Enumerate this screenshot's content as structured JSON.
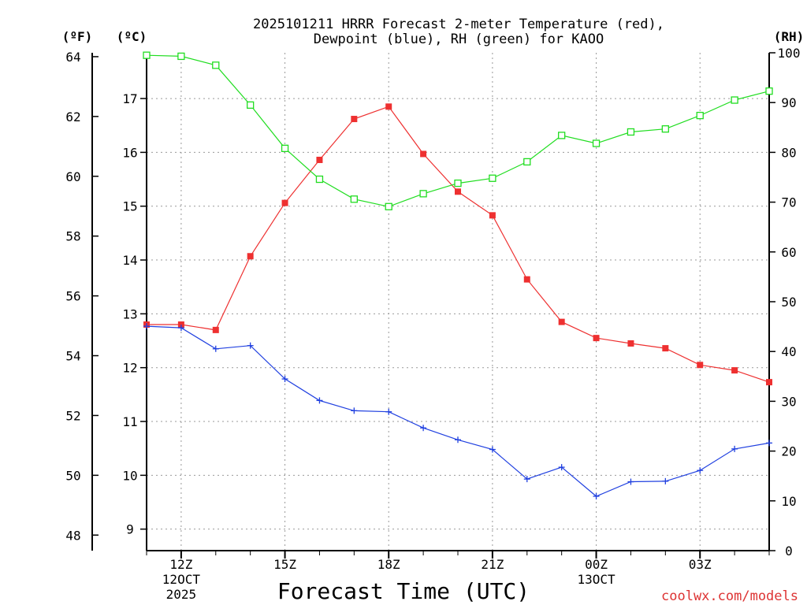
{
  "chart_data": {
    "type": "line",
    "title_line1": "2025101211 HRRR Forecast 2-meter Temperature (red),",
    "title_line2": "Dewpoint (blue), RH (green) for KAOO",
    "xlabel": "Forecast Time (UTC)",
    "watermark": "coolwx.com/models",
    "units": {
      "fahrenheit": "(ºF)",
      "celsius": "(ºC)",
      "rh": "(RH)"
    },
    "hours": [
      0,
      1,
      2,
      3,
      4,
      5,
      6,
      7,
      8,
      9,
      10,
      11,
      12,
      13,
      14,
      15,
      16,
      17,
      18
    ],
    "x_ticks": [
      {
        "hour": 1,
        "lines": [
          "12Z",
          "12OCT",
          "2025"
        ]
      },
      {
        "hour": 4,
        "lines": [
          "15Z"
        ]
      },
      {
        "hour": 7,
        "lines": [
          "18Z"
        ]
      },
      {
        "hour": 10,
        "lines": [
          "21Z"
        ]
      },
      {
        "hour": 13,
        "lines": [
          "00Z",
          "13OCT"
        ]
      },
      {
        "hour": 16,
        "lines": [
          "03Z"
        ]
      }
    ],
    "celsius_axis": {
      "range": [
        8.6,
        17.85
      ],
      "ticks": [
        "9",
        "10",
        "11",
        "12",
        "13",
        "14",
        "15",
        "16",
        "17"
      ]
    },
    "fahrenheit_axis": {
      "ticks": [
        "48",
        "50",
        "52",
        "54",
        "56",
        "58",
        "60",
        "62",
        "64"
      ]
    },
    "rh_axis": {
      "range": [
        0,
        100
      ],
      "ticks": [
        "0",
        "10",
        "20",
        "30",
        "40",
        "50",
        "60",
        "70",
        "80",
        "90",
        "100"
      ]
    },
    "series": [
      {
        "name": "Temperature",
        "axis": "celsius",
        "color": "#ee3030",
        "marker": "filled-square",
        "values": [
          12.8,
          12.8,
          12.7,
          14.07,
          15.06,
          15.86,
          16.62,
          16.85,
          15.97,
          15.27,
          14.83,
          13.64,
          12.85,
          12.55,
          12.45,
          12.36,
          12.05,
          11.95,
          11.73
        ]
      },
      {
        "name": "Dewpoint",
        "axis": "celsius",
        "color": "#2040e0",
        "marker": "plus",
        "values": [
          12.77,
          12.74,
          12.35,
          12.41,
          11.79,
          11.39,
          11.2,
          11.18,
          10.88,
          10.66,
          10.48,
          9.93,
          10.15,
          9.61,
          9.88,
          9.89,
          10.09,
          10.49,
          10.6
        ]
      },
      {
        "name": "RH",
        "axis": "rh",
        "color": "#20dd20",
        "marker": "open-square",
        "values": [
          99.5,
          99.3,
          97.5,
          89.5,
          80.8,
          74.6,
          70.6,
          69.1,
          71.7,
          73.8,
          74.8,
          78.1,
          83.4,
          81.8,
          84.1,
          84.7,
          87.4,
          90.5,
          92.3
        ]
      }
    ]
  }
}
